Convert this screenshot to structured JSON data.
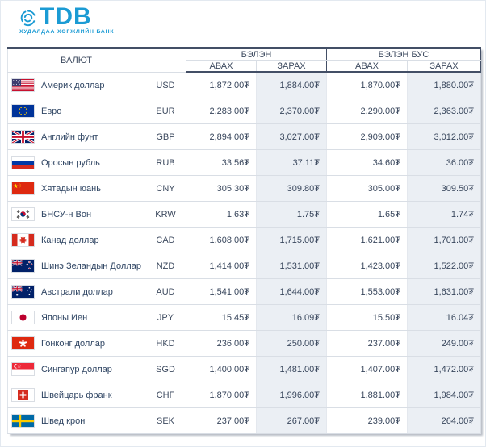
{
  "brand": {
    "name": "TDB",
    "tagline": "ХУДАЛДАА ХӨГЖЛИЙН БАНК",
    "logo_icon": "tdb-knot-icon",
    "accent_color": "#1b9bd4"
  },
  "colors": {
    "header_border_dark": "#434f66",
    "row_separator": "#d9dee5",
    "sell_column_bg": "#ebeff4"
  },
  "table": {
    "header": {
      "currency": "ВАЛЮТ",
      "cash": "БЭЛЭН",
      "non_cash": "БЭЛЭН БУС",
      "buy": "АВАХ",
      "sell": "ЗАРАХ"
    },
    "rows": [
      {
        "flag": "us",
        "name": "Америк доллар",
        "code": "USD",
        "rates": [
          "1,872.00₮",
          "1,884.00₮",
          "1,870.00₮",
          "1,880.00₮"
        ]
      },
      {
        "flag": "eu",
        "name": "Евро",
        "code": "EUR",
        "rates": [
          "2,283.00₮",
          "2,370.00₮",
          "2,290.00₮",
          "2,363.00₮"
        ]
      },
      {
        "flag": "gb",
        "name": "Английн фунт",
        "code": "GBP",
        "rates": [
          "2,894.00₮",
          "3,027.00₮",
          "2,909.00₮",
          "3,012.00₮"
        ]
      },
      {
        "flag": "ru",
        "name": "Оросын рубль",
        "code": "RUB",
        "rates": [
          "33.56₮",
          "37.11₮",
          "34.60₮",
          "36.00₮"
        ]
      },
      {
        "flag": "cn",
        "name": "Хятадын юань",
        "code": "CNY",
        "rates": [
          "305.30₮",
          "309.80₮",
          "305.00₮",
          "309.50₮"
        ]
      },
      {
        "flag": "kr",
        "name": "БНСУ-н Вон",
        "code": "KRW",
        "rates": [
          "1.63₮",
          "1.75₮",
          "1.65₮",
          "1.74₮"
        ]
      },
      {
        "flag": "ca",
        "name": "Канад доллар",
        "code": "CAD",
        "rates": [
          "1,608.00₮",
          "1,715.00₮",
          "1,621.00₮",
          "1,701.00₮"
        ]
      },
      {
        "flag": "nz",
        "name": "Шинэ Зеландын Доллар",
        "code": "NZD",
        "rates": [
          "1,414.00₮",
          "1,531.00₮",
          "1,423.00₮",
          "1,522.00₮"
        ]
      },
      {
        "flag": "au",
        "name": "Австрали доллар",
        "code": "AUD",
        "rates": [
          "1,541.00₮",
          "1,644.00₮",
          "1,553.00₮",
          "1,631.00₮"
        ]
      },
      {
        "flag": "jp",
        "name": "Японы Иен",
        "code": "JPY",
        "rates": [
          "15.45₮",
          "16.09₮",
          "15.50₮",
          "16.04₮"
        ]
      },
      {
        "flag": "hk",
        "name": "Гонконг доллар",
        "code": "HKD",
        "rates": [
          "236.00₮",
          "250.00₮",
          "237.00₮",
          "249.00₮"
        ]
      },
      {
        "flag": "sg",
        "name": "Сингапур доллар",
        "code": "SGD",
        "rates": [
          "1,400.00₮",
          "1,481.00₮",
          "1,407.00₮",
          "1,472.00₮"
        ]
      },
      {
        "flag": "ch",
        "name": "Швейцарь франк",
        "code": "CHF",
        "rates": [
          "1,870.00₮",
          "1,996.00₮",
          "1,881.00₮",
          "1,984.00₮"
        ]
      },
      {
        "flag": "se",
        "name": "Швед крон",
        "code": "SEK",
        "rates": [
          "237.00₮",
          "267.00₮",
          "239.00₮",
          "264.00₮"
        ]
      }
    ]
  }
}
